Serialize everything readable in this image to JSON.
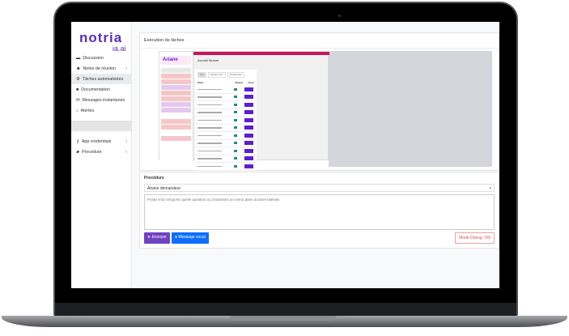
{
  "brand": {
    "name": "notria",
    "sub": "ia.ai"
  },
  "sidebar": {
    "items": [
      {
        "label": "Discussion",
        "icon": "chat-icon",
        "chevron": false,
        "active": false
      },
      {
        "label": "Notes de réunion",
        "icon": "users-icon",
        "chevron": true,
        "active": false
      },
      {
        "label": "Tâches automatisées",
        "icon": "gears-icon",
        "chevron": false,
        "active": true
      },
      {
        "label": "Documentation",
        "icon": "book-icon",
        "chevron": false,
        "active": false
      },
      {
        "label": "Messages instantanés",
        "icon": "envelope-icon",
        "chevron": false,
        "active": false
      },
      {
        "label": "Alertes",
        "icon": "bell-icon",
        "chevron": false,
        "active": false
      }
    ],
    "items2": [
      {
        "label": "App credentials",
        "icon": "key-icon",
        "chevron": true
      },
      {
        "label": "Procedure",
        "icon": "folder-icon",
        "chevron": true
      }
    ]
  },
  "main": {
    "title": "Exécution de tâches",
    "inner": {
      "app": "Ariane",
      "user": "Accueil Mutuel",
      "tabs": [
        "Tout",
        "Fonction mod.",
        "Fonction auto"
      ],
      "headers": [
        "Statut",
        "Membre",
        "Action"
      ]
    }
  },
  "procedure": {
    "label": "Procédure",
    "selected": "Ariane demandeur",
    "placeholder": "Posez-moi n'importe quelle question ou choisissez un menu dans la barre latérale",
    "send": "Envoyer",
    "voice": "Message vocal",
    "debug": "Mode Debug: ON"
  },
  "colors": {
    "brand": "#5b2ec2",
    "send": "#6f42c1",
    "voice": "#0d6efd",
    "debug": "#d9534f"
  }
}
